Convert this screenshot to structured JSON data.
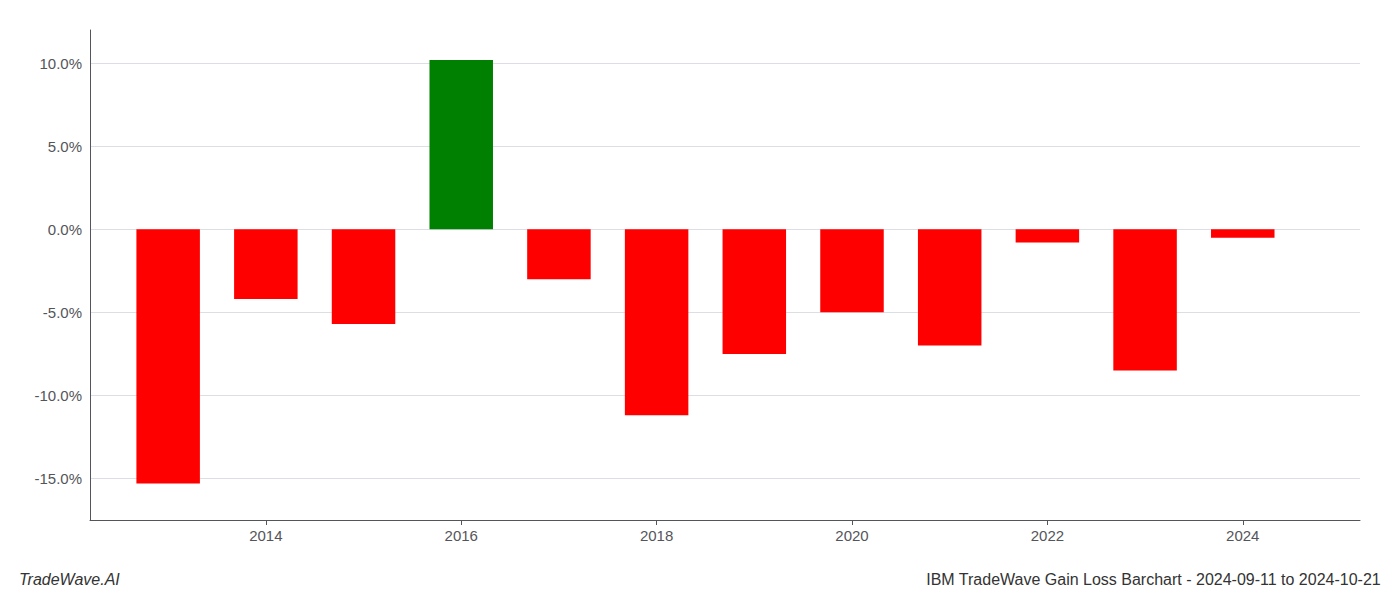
{
  "chart_data": {
    "type": "bar",
    "title": "IBM TradeWave Gain Loss Barchart - 2024-09-11 to 2024-10-21",
    "annotations": [
      "TradeWave.AI"
    ],
    "x": [
      2013,
      2014,
      2015,
      2016,
      2017,
      2018,
      2019,
      2020,
      2021,
      2022,
      2023,
      2024
    ],
    "values": [
      -15.3,
      -4.2,
      -5.7,
      10.2,
      -3.0,
      -11.2,
      -7.5,
      -5.0,
      -7.0,
      -0.8,
      -8.5,
      -0.5
    ],
    "colors": [
      "#ff0000",
      "#ff0000",
      "#ff0000",
      "#008000",
      "#ff0000",
      "#ff0000",
      "#ff0000",
      "#ff0000",
      "#ff0000",
      "#ff0000",
      "#ff0000",
      "#ff0000"
    ],
    "xlim": [
      2012.2,
      2025.2
    ],
    "xticks": [
      2014,
      2016,
      2018,
      2020,
      2022,
      2024
    ],
    "ylim": [
      -17.5,
      12
    ],
    "yticks": [
      {
        "value": -15.0,
        "label": "-15.0%"
      },
      {
        "value": -10.0,
        "label": "-10.0%"
      },
      {
        "value": -5.0,
        "label": "-5.0%"
      },
      {
        "value": 0.0,
        "label": "0.0%"
      },
      {
        "value": 5.0,
        "label": "5.0%"
      },
      {
        "value": 10.0,
        "label": "10.0%"
      }
    ],
    "grid": true
  }
}
